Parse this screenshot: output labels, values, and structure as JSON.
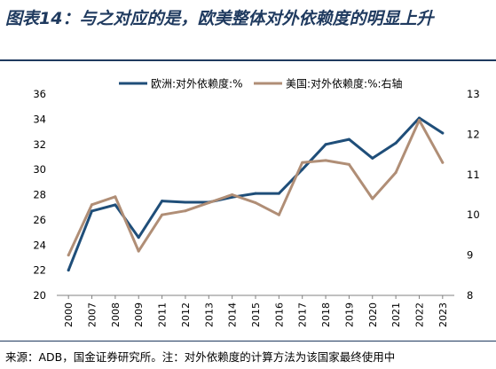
{
  "header": {
    "title": "图表14：与之对应的是，欧美整体对外依赖度的明显上升"
  },
  "footer": {
    "source": "来源：ADB，国金证券研究所。注：对外依赖度的计算方法为该国家最终使用中"
  },
  "colors": {
    "title": "#1f3a5f",
    "europe_series": "#1f4e79",
    "us_series": "#b08e76",
    "axis": "#808080"
  },
  "chart_data": {
    "type": "line",
    "categories": [
      "2000",
      "2007",
      "2008",
      "2009",
      "2011",
      "2012",
      "2013",
      "2014",
      "2015",
      "2016",
      "2017",
      "2018",
      "2019",
      "2020",
      "2021",
      "2022",
      "2023"
    ],
    "series": [
      {
        "name": "欧洲:对外依赖度:%",
        "axis": "left",
        "color": "#1f4e79",
        "values": [
          22.0,
          26.7,
          27.2,
          24.6,
          27.5,
          27.4,
          27.4,
          27.8,
          28.1,
          28.1,
          30.0,
          32.0,
          32.4,
          30.9,
          32.1,
          34.1,
          32.9
        ]
      },
      {
        "name": "美国:对外依赖度:%:右轴",
        "axis": "right",
        "color": "#b08e76",
        "values": [
          9.0,
          10.25,
          10.45,
          9.1,
          10.0,
          10.1,
          10.3,
          10.5,
          10.3,
          10.0,
          11.3,
          11.35,
          11.25,
          10.4,
          11.05,
          12.35,
          11.3
        ]
      }
    ],
    "y_left": {
      "lim": [
        20,
        36
      ],
      "ticks": [
        20,
        22,
        24,
        26,
        28,
        30,
        32,
        34,
        36
      ]
    },
    "y_right": {
      "lim": [
        8,
        13
      ],
      "ticks": [
        8,
        9,
        10,
        11,
        12,
        13
      ]
    },
    "legend": "top-center",
    "grid": false
  }
}
